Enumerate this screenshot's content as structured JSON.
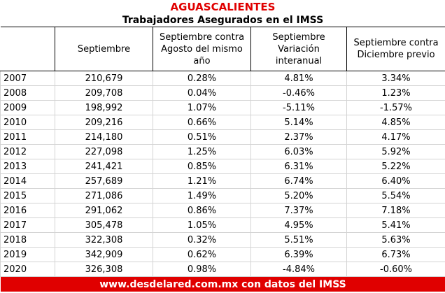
{
  "header": {
    "title": "AGUASCALIENTES",
    "subtitle": "Trabajadores Asegurados en el IMSS"
  },
  "table": {
    "columns": [
      "Septiembre",
      "Septiembre contra Agosto del mismo año",
      "Septiembre Variación interanual",
      "Septiembre contra Diciembre previo"
    ],
    "rows": [
      [
        "2007",
        "210,679",
        "0.28%",
        "4.81%",
        "3.34%"
      ],
      [
        "2008",
        "209,708",
        "0.04%",
        "-0.46%",
        "1.23%"
      ],
      [
        "2009",
        "198,992",
        "1.07%",
        "-5.11%",
        "-1.57%"
      ],
      [
        "2010",
        "209,216",
        "0.66%",
        "5.14%",
        "4.85%"
      ],
      [
        "2011",
        "214,180",
        "0.51%",
        "2.37%",
        "4.17%"
      ],
      [
        "2012",
        "227,098",
        "1.25%",
        "6.03%",
        "5.92%"
      ],
      [
        "2013",
        "241,421",
        "0.85%",
        "6.31%",
        "5.22%"
      ],
      [
        "2014",
        "257,689",
        "1.21%",
        "6.74%",
        "6.40%"
      ],
      [
        "2015",
        "271,086",
        "1.49%",
        "5.20%",
        "5.54%"
      ],
      [
        "2016",
        "291,062",
        "0.86%",
        "7.37%",
        "7.18%"
      ],
      [
        "2017",
        "305,478",
        "1.05%",
        "4.95%",
        "5.41%"
      ],
      [
        "2018",
        "322,308",
        "0.32%",
        "5.51%",
        "5.63%"
      ],
      [
        "2019",
        "342,909",
        "0.62%",
        "6.39%",
        "6.73%"
      ],
      [
        "2020",
        "326,308",
        "0.98%",
        "-4.84%",
        "-0.60%"
      ]
    ]
  },
  "footer": {
    "text": "www.desdelared.com.mx con datos del IMSS"
  }
}
